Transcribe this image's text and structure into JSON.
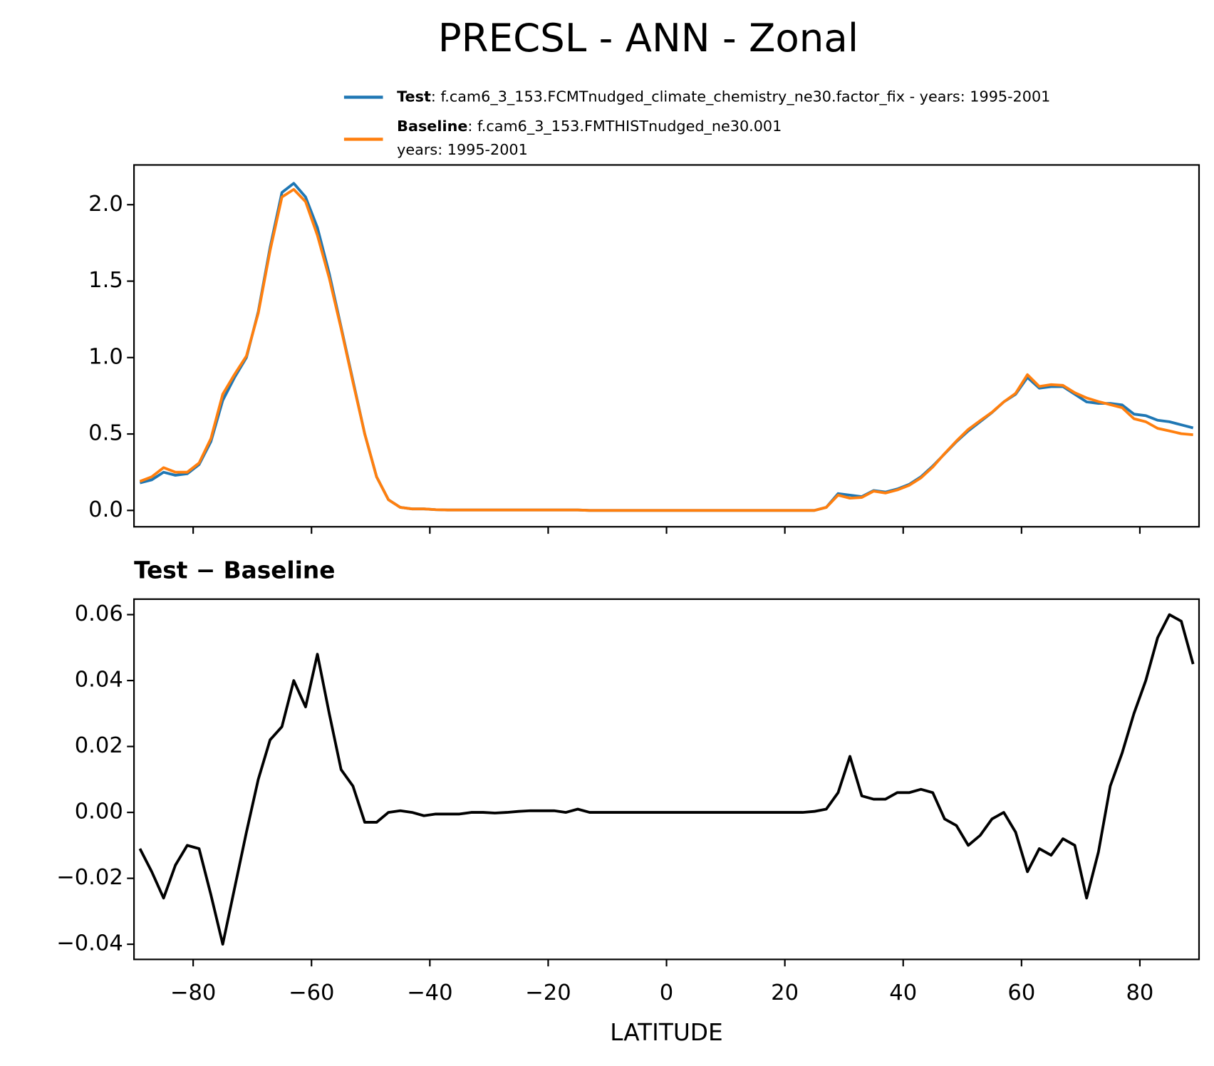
{
  "title": "PRECSL - ANN - Zonal",
  "chart_data": [
    {
      "type": "line",
      "x": [
        -89,
        -87,
        -85,
        -83,
        -81,
        -79,
        -77,
        -75,
        -73,
        -71,
        -69,
        -67,
        -65,
        -63,
        -61,
        -59,
        -57,
        -55,
        -53,
        -51,
        -49,
        -47,
        -45,
        -43,
        -41,
        -39,
        -37,
        -35,
        -33,
        -31,
        -29,
        -27,
        -25,
        -23,
        -21,
        -19,
        -17,
        -15,
        -13,
        -11,
        -9,
        -7,
        -5,
        -3,
        -1,
        1,
        3,
        5,
        7,
        9,
        11,
        13,
        15,
        17,
        19,
        21,
        23,
        25,
        27,
        29,
        31,
        33,
        35,
        37,
        39,
        41,
        43,
        45,
        47,
        49,
        51,
        53,
        55,
        57,
        59,
        61,
        63,
        65,
        67,
        69,
        71,
        73,
        75,
        77,
        79,
        81,
        83,
        85,
        87,
        89
      ],
      "series": [
        {
          "name": "Test",
          "description": ": f.cam6_3_153.FCMTnudged_climate_chemistry_ne30.factor_fix - years: 1995-2001",
          "color": "#1f77b4",
          "values": [
            0.18,
            0.2,
            0.25,
            0.23,
            0.24,
            0.3,
            0.45,
            0.72,
            0.87,
            1.0,
            1.3,
            1.72,
            2.08,
            2.14,
            2.05,
            1.85,
            1.55,
            1.2,
            0.85,
            0.5,
            0.22,
            0.07,
            0.02,
            0.01,
            0.01,
            0.005,
            0.003,
            0.003,
            0.003,
            0.003,
            0.003,
            0.003,
            0.003,
            0.003,
            0.003,
            0.003,
            0.003,
            0.003,
            0,
            0,
            0,
            0,
            0,
            0,
            0,
            0,
            0,
            0,
            0,
            0,
            0,
            0,
            0,
            0,
            0,
            0,
            0,
            0,
            0.02,
            0.11,
            0.1,
            0.09,
            0.13,
            0.12,
            0.14,
            0.17,
            0.22,
            0.29,
            0.37,
            0.45,
            0.52,
            0.58,
            0.64,
            0.71,
            0.76,
            0.87,
            0.8,
            0.81,
            0.81,
            0.76,
            0.71,
            0.7,
            0.7,
            0.69,
            0.63,
            0.62,
            0.59,
            0.58,
            0.56,
            0.54
          ]
        },
        {
          "name": "Baseline",
          "description": [
            ": f.cam6_3_153.FMTHISTnudged_ne30.001",
            "years: 1995-2001"
          ],
          "color": "#ff7f0e",
          "values": [
            0.19,
            0.22,
            0.28,
            0.25,
            0.25,
            0.31,
            0.47,
            0.76,
            0.89,
            1.01,
            1.29,
            1.7,
            2.05,
            2.1,
            2.02,
            1.8,
            1.52,
            1.19,
            0.84,
            0.5,
            0.22,
            0.07,
            0.02,
            0.01,
            0.01,
            0.005,
            0.003,
            0.003,
            0.003,
            0.003,
            0.003,
            0.003,
            0.003,
            0.003,
            0.003,
            0.003,
            0.003,
            0.003,
            0,
            0,
            0,
            0,
            0,
            0,
            0,
            0,
            0,
            0,
            0,
            0,
            0,
            0,
            0,
            0,
            0,
            0,
            0,
            0,
            0.02,
            0.1,
            0.08,
            0.085,
            0.126,
            0.114,
            0.134,
            0.164,
            0.213,
            0.284,
            0.372,
            0.454,
            0.53,
            0.587,
            0.642,
            0.71,
            0.766,
            0.888,
            0.811,
            0.823,
            0.818,
            0.77,
            0.736,
            0.712,
            0.692,
            0.672,
            0.6,
            0.58,
            0.537,
            0.52,
            0.502,
            0.495
          ]
        }
      ],
      "xlim": [
        -90,
        90
      ],
      "xticks": [
        -80,
        -60,
        -40,
        -20,
        0,
        20,
        40,
        60,
        80
      ],
      "ylim": [
        -0.107,
        2.26
      ],
      "yticks": [
        {
          "value": 0,
          "label": "0.0"
        },
        {
          "value": 0.5,
          "label": "0.5"
        },
        {
          "value": 1,
          "label": "1.0"
        },
        {
          "value": 1.5,
          "label": "1.5"
        },
        {
          "value": 2,
          "label": "2.0"
        }
      ]
    },
    {
      "type": "line",
      "title": "Test − Baseline",
      "xlabel": "LATITUDE",
      "x": [
        -89,
        -87,
        -85,
        -83,
        -81,
        -79,
        -77,
        -75,
        -73,
        -71,
        -69,
        -67,
        -65,
        -63,
        -61,
        -59,
        -57,
        -55,
        -53,
        -51,
        -49,
        -47,
        -45,
        -43,
        -41,
        -39,
        -37,
        -35,
        -33,
        -31,
        -29,
        -27,
        -25,
        -23,
        -21,
        -19,
        -17,
        -15,
        -13,
        -11,
        -9,
        -7,
        -5,
        -3,
        -1,
        1,
        3,
        5,
        7,
        9,
        11,
        13,
        15,
        17,
        19,
        21,
        23,
        25,
        27,
        29,
        31,
        33,
        35,
        37,
        39,
        41,
        43,
        45,
        47,
        49,
        51,
        53,
        55,
        57,
        59,
        61,
        63,
        65,
        67,
        69,
        71,
        73,
        75,
        77,
        79,
        81,
        83,
        85,
        87,
        89
      ],
      "series": [
        {
          "color": "#000000",
          "values": [
            -0.011,
            -0.018,
            -0.026,
            -0.016,
            -0.01,
            -0.011,
            -0.025,
            -0.04,
            -0.023,
            -0.006,
            0.01,
            0.022,
            0.026,
            0.04,
            0.032,
            0.048,
            0.03,
            0.013,
            0.008,
            -0.003,
            -0.003,
            0.0,
            0.0005,
            0.0,
            -0.001,
            -0.0005,
            -0.0005,
            -0.0005,
            0,
            0,
            -0.0002,
            0,
            0.0003,
            0.0005,
            0.0005,
            0.0005,
            0,
            0.001,
            0,
            0,
            0,
            0,
            0,
            0,
            0,
            0,
            0,
            0,
            0,
            0,
            0,
            0,
            0,
            0,
            0,
            0,
            0,
            0.0003,
            0.001,
            0.006,
            0.017,
            0.005,
            0.004,
            0.004,
            0.006,
            0.006,
            0.007,
            0.006,
            -0.002,
            -0.004,
            -0.01,
            -0.007,
            -0.002,
            0.0,
            -0.006,
            -0.018,
            -0.011,
            -0.013,
            -0.008,
            -0.01,
            -0.026,
            -0.012,
            0.008,
            0.018,
            0.03,
            0.04,
            0.053,
            0.06,
            0.058,
            0.045
          ]
        }
      ],
      "xlim": [
        -90,
        90
      ],
      "xticks": [
        {
          "value": -80,
          "label": "−80"
        },
        {
          "value": -60,
          "label": "−60"
        },
        {
          "value": -40,
          "label": "−40"
        },
        {
          "value": -20,
          "label": "−20"
        },
        {
          "value": 0,
          "label": "0"
        },
        {
          "value": 20,
          "label": "20"
        },
        {
          "value": 40,
          "label": "40"
        },
        {
          "value": 60,
          "label": "60"
        },
        {
          "value": 80,
          "label": "80"
        }
      ],
      "ylim": [
        -0.0446,
        0.0647
      ],
      "yticks": [
        {
          "value": -0.04,
          "label": "−0.04"
        },
        {
          "value": -0.02,
          "label": "−0.02"
        },
        {
          "value": 0,
          "label": "0.00"
        },
        {
          "value": 0.02,
          "label": "0.02"
        },
        {
          "value": 0.04,
          "label": "0.04"
        },
        {
          "value": 0.06,
          "label": "0.06"
        }
      ]
    }
  ]
}
